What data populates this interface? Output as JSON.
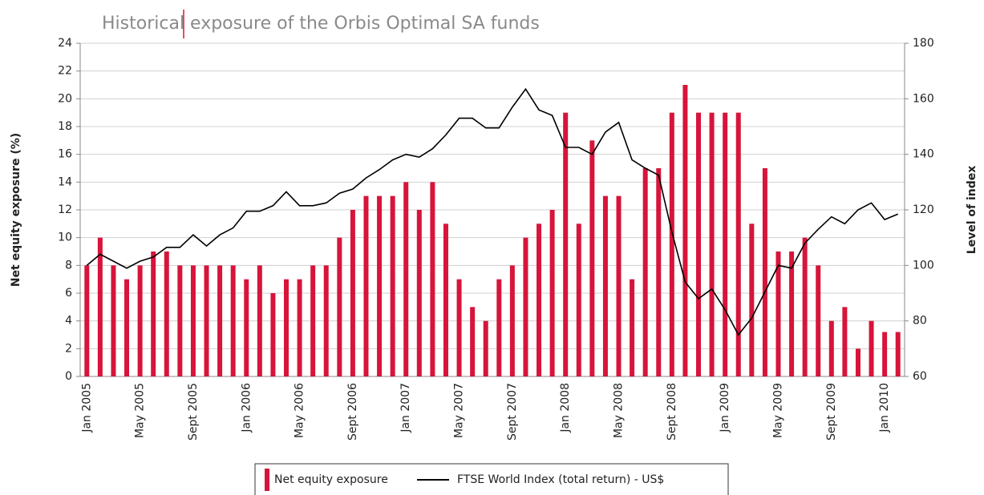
{
  "chart_data": {
    "type": "bar-line",
    "title": "Historical exposure of the Orbis Optimal SA funds",
    "ylabel": "Net equity exposure (%)",
    "y2label": "Level of index",
    "categories": [
      "Jan 2005",
      null,
      null,
      null,
      "May 2005",
      null,
      null,
      null,
      "Sept 2005",
      null,
      null,
      null,
      "Jan 2006",
      null,
      null,
      null,
      "May 2006",
      null,
      null,
      null,
      "Sept 2006",
      null,
      null,
      null,
      "Jan 2007",
      null,
      null,
      null,
      "May 2007",
      null,
      null,
      null,
      "Sept 2007",
      null,
      null,
      null,
      "Jan 2008",
      null,
      null,
      null,
      "May 2008",
      null,
      null,
      null,
      "Sept 2008",
      null,
      null,
      null,
      "Jan 2009",
      null,
      null,
      null,
      "May 2009",
      null,
      null,
      null,
      "Sept 2009",
      null,
      null,
      null,
      "Jan 2010",
      null
    ],
    "series": [
      {
        "name": "Net equity exposure",
        "type": "bar",
        "color": "#d7143a",
        "values": [
          8,
          10,
          8,
          7,
          8,
          9,
          9,
          8,
          8,
          8,
          8,
          8,
          7,
          8,
          6,
          7,
          7,
          8,
          8,
          10,
          12,
          13,
          13,
          13,
          14,
          12,
          14,
          11,
          7,
          5,
          4,
          7,
          8,
          10,
          11,
          12,
          19,
          11,
          17,
          13,
          13,
          7,
          15,
          15,
          19,
          21,
          19,
          19,
          19,
          19,
          11,
          15,
          9,
          9,
          10,
          8,
          4,
          5,
          2,
          4,
          3.2,
          3.2
        ]
      },
      {
        "name": "FTSE World Index (total return) - US$",
        "type": "line",
        "axis": "y2",
        "color": "#000000",
        "values": [
          100,
          104,
          101.5,
          99,
          101.5,
          103,
          106.5,
          106.5,
          111,
          107,
          111,
          113.5,
          119.5,
          119.5,
          121.5,
          126.5,
          121.5,
          121.5,
          122.5,
          126,
          127.5,
          131.5,
          134.5,
          138,
          140,
          139,
          142,
          147,
          153,
          153,
          149.5,
          149.5,
          157,
          163.5,
          156,
          154,
          142.5,
          142.5,
          140,
          148,
          151.5,
          138,
          135,
          132.5,
          112,
          94,
          88,
          91.5,
          84,
          75,
          81,
          90.5,
          100,
          99,
          108,
          113,
          117.5,
          115,
          120,
          122.5,
          116.5,
          118.5
        ]
      }
    ],
    "ylim": [
      0,
      24
    ],
    "yticks": [
      0,
      2,
      4,
      6,
      8,
      10,
      12,
      14,
      16,
      18,
      20,
      22,
      24
    ],
    "y2lim": [
      60,
      180
    ],
    "y2ticks": [
      60,
      80,
      100,
      120,
      140,
      160,
      180
    ],
    "grid": true,
    "legend": "bottom"
  }
}
